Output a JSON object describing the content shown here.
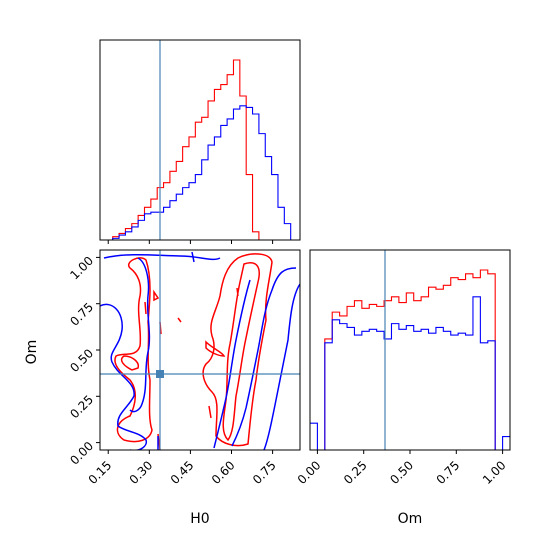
{
  "chart_data": {
    "type": "corner",
    "parameters": [
      "H0",
      "Om"
    ],
    "truth": {
      "H0": 0.35,
      "Om": 0.37
    },
    "colors": {
      "red": "#ff0000",
      "blue": "#0000ff",
      "truth": "#4682b4"
    },
    "grid": false,
    "panels": [
      {
        "id": "hist-H0",
        "type": "histogram-step",
        "xlim": [
          0.12,
          0.85
        ],
        "bins": [
          0.12,
          0.1432,
          0.1664,
          0.1896,
          0.2128,
          0.236,
          0.2592,
          0.2824,
          0.3056,
          0.3288,
          0.352,
          0.3752,
          0.3984,
          0.4216,
          0.4448,
          0.468,
          0.4912,
          0.5144,
          0.5376,
          0.5608,
          0.584,
          0.6072,
          0.6304,
          0.6536,
          0.6768,
          0.7,
          0.7232,
          0.7464,
          0.7696,
          0.7928,
          0.816,
          0.85
        ],
        "series": [
          {
            "name": "red",
            "counts": [
              0,
              0,
              2,
              4,
              7,
              10,
              15,
              20,
              25,
              32,
              35,
              42,
              48,
              57,
              63,
              72,
              75,
              85,
              92,
              95,
              101,
              110,
              88,
              40,
              5,
              0,
              0,
              0,
              0,
              0,
              0
            ]
          },
          {
            "name": "blue",
            "counts": [
              0,
              0,
              1,
              3,
              5,
              8,
              12,
              16,
              17,
              17,
              20,
              24,
              28,
              32,
              35,
              40,
              49,
              58,
              63,
              70,
              74,
              80,
              82,
              81,
              77,
              65,
              51,
              40,
              20,
              10,
              0
            ]
          }
        ]
      },
      {
        "id": "contour-H0-Om",
        "type": "contour",
        "x": "H0",
        "y": "Om",
        "xlim": [
          0.12,
          0.85
        ],
        "ylim": [
          -0.04,
          1.04
        ],
        "xticks": [
          "0.15",
          "0.30",
          "0.45",
          "0.60",
          "0.75"
        ],
        "yticks": [
          "0.00",
          "0.25",
          "0.50",
          "0.75",
          "1.00"
        ],
        "xlabel": "H0",
        "ylabel": "Om"
      },
      {
        "id": "hist-Om",
        "type": "histogram-step",
        "xlim": [
          -0.04,
          1.04
        ],
        "xticks": [
          "0.00",
          "0.25",
          "0.50",
          "0.75",
          "1.00"
        ],
        "xlabel": "Om",
        "bins": [
          -0.04,
          0.0,
          0.04,
          0.08,
          0.12,
          0.16,
          0.2,
          0.24,
          0.28,
          0.32,
          0.36,
          0.4,
          0.44,
          0.48,
          0.52,
          0.56,
          0.6,
          0.64,
          0.68,
          0.72,
          0.76,
          0.8,
          0.84,
          0.88,
          0.92,
          0.96,
          1.0,
          1.04
        ],
        "series": [
          {
            "name": "red",
            "counts": [
              0,
              0,
              0.58,
              0.72,
              0.7,
              0.75,
              0.78,
              0.74,
              0.76,
              0.75,
              0.78,
              0.8,
              0.77,
              0.82,
              0.78,
              0.8,
              0.85,
              0.84,
              0.86,
              0.9,
              0.89,
              0.92,
              0.9,
              0.94,
              0.92,
              0,
              0
            ]
          },
          {
            "name": "blue",
            "counts": [
              0.14,
              0,
              0.56,
              0.68,
              0.66,
              0.64,
              0.6,
              0.62,
              0.63,
              0.62,
              0.58,
              0.66,
              0.63,
              0.65,
              0.62,
              0.63,
              0.61,
              0.64,
              0.62,
              0.6,
              0.61,
              0.6,
              0.8,
              0.56,
              0.57,
              0,
              0.07
            ]
          }
        ]
      }
    ]
  }
}
